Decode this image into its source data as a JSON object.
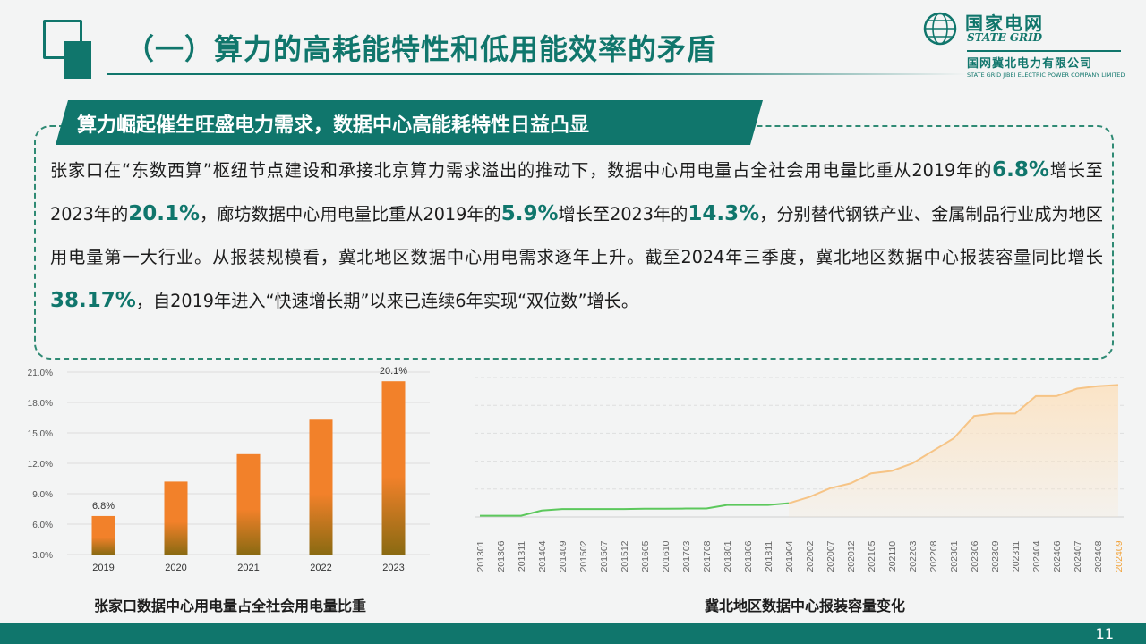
{
  "header": {
    "title": "（一）算力的高耗能特性和低用能效率的矛盾"
  },
  "logo": {
    "cn": "国家电网",
    "en": "STATE GRID",
    "sub_cn": "国网冀北电力有限公司",
    "sub_en": "STATE GRID JIBEI ELECTRIC POWER COMPANY LIMITED"
  },
  "callout": {
    "heading": "算力崛起催生旺盛电力需求，数据中心高能耗特性日益凸显",
    "p1": "张家口在“东数西算”枢纽节点建设和承接北京算力需求溢出的推动下，数据中心用电量占全社会用电量比重从2019年的",
    "v1": "6.8%",
    "p2": "增长至2023年的",
    "v2": "20.1%",
    "p3": "，廊坊数据中心用电量比重从2019年的",
    "v3": "5.9%",
    "p4": "增长至2023年的",
    "v4": "14.3%",
    "p5": "，分别替代钢铁产业、金属制品行业成为地区用电量第一大行业。从报装规模看，冀北地区数据中心用电需求逐年上升。截至2024年三季度，冀北地区数据中心报装容量同比增长",
    "v5": "38.17%",
    "p6": "，自2019年进入“快速增长期”以来已连续6年实现“双位数”增长。"
  },
  "chart_data": [
    {
      "type": "bar",
      "title": "张家口数据中心用电量占全社会用电量比重",
      "categories": [
        "2019",
        "2020",
        "2021",
        "2022",
        "2023"
      ],
      "values": [
        6.8,
        10.2,
        12.9,
        16.3,
        20.1
      ],
      "data_labels": [
        "6.8%",
        "",
        "",
        "",
        "20.1%"
      ],
      "y_ticks": [
        "3.0%",
        "6.0%",
        "9.0%",
        "12.0%",
        "15.0%",
        "18.0%",
        "21.0%"
      ],
      "ylim": [
        3.0,
        21.0
      ],
      "grid": true,
      "colors": {
        "bar_top": "#f2812a",
        "bar_bottom": "#8a6a12"
      }
    },
    {
      "type": "area",
      "title": "冀北地区数据中心报装容量变化",
      "categories": [
        "201301",
        "201306",
        "201311",
        "201404",
        "201409",
        "201502",
        "201507",
        "201512",
        "201605",
        "201610",
        "201703",
        "201708",
        "201801",
        "201806",
        "201811",
        "201904",
        "202002",
        "202007",
        "202012",
        "202105",
        "202110",
        "202203",
        "202208",
        "202301",
        "202306",
        "202309",
        "202311",
        "202404",
        "202406",
        "202407",
        "202408",
        "202409"
      ],
      "values": [
        0.5,
        0.5,
        0.5,
        2.6,
        3.2,
        3.2,
        3.2,
        3.2,
        3.3,
        3.3,
        3.4,
        3.4,
        4.8,
        4.8,
        4.8,
        5.5,
        8.0,
        11.5,
        13.5,
        17.5,
        18.5,
        21.5,
        26.5,
        31.5,
        40.5,
        41.5,
        41.5,
        48.5,
        48.5,
        51.5,
        52.5,
        53.0
      ],
      "y_axis_visible": false,
      "ylim": [
        0,
        56
      ],
      "growth_start_category": "201904",
      "highlight_category": "202409",
      "grid": true,
      "colors": {
        "early_line": "#5cc85c",
        "late_line": "#f6c486",
        "late_fill": "#fbe3c4",
        "highlight_tick": "#f2a33a"
      }
    }
  ],
  "footer": {
    "page_number": "11"
  },
  "colors": {
    "brand_green": "#10766c",
    "highlight_text": "#10766c"
  }
}
